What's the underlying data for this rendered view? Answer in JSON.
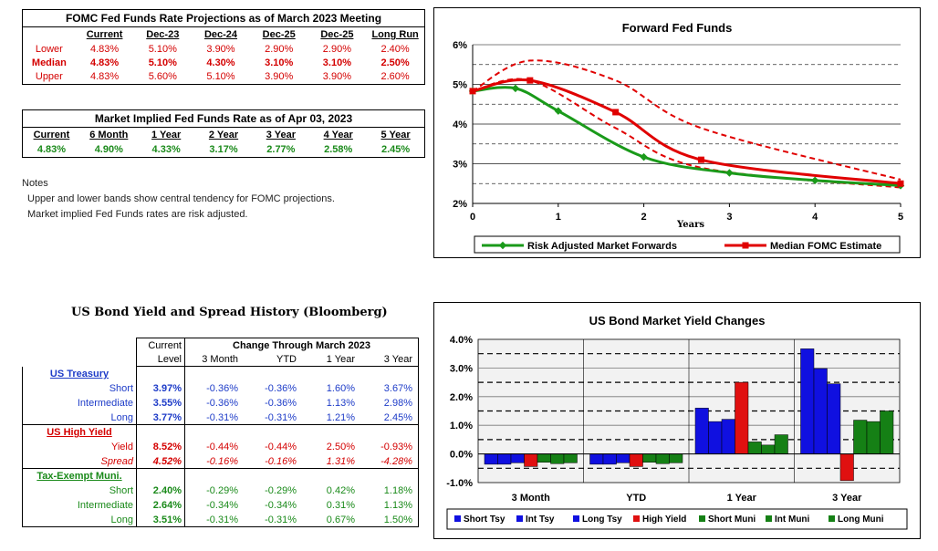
{
  "fomc_table": {
    "title": "FOMC Fed Funds Rate Projections as of March 2023 Meeting",
    "columns": [
      "Current",
      "Dec-23",
      "Dec-24",
      "Dec-25",
      "Dec-25",
      "Long Run"
    ],
    "rows": [
      {
        "label": "Lower",
        "values": [
          "4.83%",
          "5.10%",
          "3.90%",
          "2.90%",
          "2.90%",
          "2.40%"
        ]
      },
      {
        "label": "Median",
        "values": [
          "4.83%",
          "5.10%",
          "4.30%",
          "3.10%",
          "3.10%",
          "2.50%"
        ]
      },
      {
        "label": "Upper",
        "values": [
          "4.83%",
          "5.60%",
          "5.10%",
          "3.90%",
          "3.90%",
          "2.60%"
        ]
      }
    ]
  },
  "implied_table": {
    "title": "Market Implied Fed Funds Rate as of Apr 03, 2023",
    "columns": [
      "Current",
      "6 Month",
      "1 Year",
      "2 Year",
      "3 Year",
      "4 Year",
      "5 Year"
    ],
    "values": [
      "4.83%",
      "4.90%",
      "4.33%",
      "3.17%",
      "2.77%",
      "2.58%",
      "2.45%"
    ]
  },
  "notes": {
    "heading": "Notes",
    "line1": "Upper and lower bands show central tendency for FOMC projections.",
    "line2": "Market implied Fed Funds rates are risk adjusted."
  },
  "bond_table": {
    "title": "US Bond Yield and Spread History (Bloomberg)",
    "header": {
      "current": "Current",
      "level": "Level",
      "change_title": "Change Through March 2023",
      "cols": [
        "3 Month",
        "YTD",
        "1 Year",
        "3 Year"
      ]
    },
    "sections": [
      {
        "name": "US Treasury",
        "rows": [
          {
            "label": "Short",
            "level": "3.97%",
            "values": [
              "-0.36%",
              "-0.36%",
              "1.60%",
              "3.67%"
            ]
          },
          {
            "label": "Intermediate",
            "level": "3.55%",
            "values": [
              "-0.36%",
              "-0.36%",
              "1.13%",
              "2.98%"
            ]
          },
          {
            "label": "Long",
            "level": "3.77%",
            "values": [
              "-0.31%",
              "-0.31%",
              "1.21%",
              "2.45%"
            ]
          }
        ]
      },
      {
        "name": "US High Yield",
        "rows": [
          {
            "label": "Yield",
            "level": "8.52%",
            "values": [
              "-0.44%",
              "-0.44%",
              "2.50%",
              "-0.93%"
            ]
          },
          {
            "label": "Spread",
            "level": "4.52%",
            "values": [
              "-0.16%",
              "-0.16%",
              "1.31%",
              "-4.28%"
            ]
          }
        ]
      },
      {
        "name": "Tax-Exempt Muni.",
        "rows": [
          {
            "label": "Short",
            "level": "2.40%",
            "values": [
              "-0.29%",
              "-0.29%",
              "0.42%",
              "1.18%"
            ]
          },
          {
            "label": "Intermediate",
            "level": "2.64%",
            "values": [
              "-0.34%",
              "-0.34%",
              "0.31%",
              "1.13%"
            ]
          },
          {
            "label": "Long",
            "level": "3.51%",
            "values": [
              "-0.31%",
              "-0.31%",
              "0.67%",
              "1.50%"
            ]
          }
        ]
      }
    ]
  },
  "chart_data": [
    {
      "type": "line",
      "title": "Forward Fed Funds",
      "xlabel": "Years",
      "ylabel": "",
      "xlim": [
        0,
        5
      ],
      "ylim": [
        2,
        6
      ],
      "x_ticks": [
        0,
        1,
        2,
        3,
        4,
        5
      ],
      "y_ticks": [
        2,
        3,
        4,
        5,
        6
      ],
      "y_tick_labels": [
        "2%",
        "3%",
        "4%",
        "5%",
        "6%"
      ],
      "grid": "dashed horizontal at half-percent levels",
      "legend": "bottom",
      "series": [
        {
          "name": "Risk Adjusted Market Forwards",
          "color": "#1a9a1a",
          "style": "solid-markers",
          "x": [
            0,
            0.5,
            1,
            2,
            3,
            4,
            5
          ],
          "y": [
            4.83,
            4.9,
            4.33,
            3.17,
            2.77,
            2.58,
            2.45
          ]
        },
        {
          "name": "Median FOMC Estimate",
          "color": "#e00000",
          "style": "solid-markers",
          "x": [
            0,
            0.67,
            1.67,
            2.67,
            5
          ],
          "y": [
            4.83,
            5.1,
            4.3,
            3.1,
            2.5
          ]
        },
        {
          "color": "#e00000",
          "style": "dashed",
          "x": [
            0,
            0.67,
            1.67,
            2.67,
            5
          ],
          "y": [
            4.83,
            5.6,
            5.1,
            3.9,
            2.6
          ]
        },
        {
          "color": "#e00000",
          "style": "dashed",
          "x": [
            0,
            0.67,
            1.67,
            2.67,
            5
          ],
          "y": [
            4.83,
            5.1,
            3.9,
            2.9,
            2.4
          ]
        }
      ]
    },
    {
      "type": "bar",
      "title": "US Bond Market Yield Changes",
      "categories": [
        "3 Month",
        "YTD",
        "1 Year",
        "3 Year"
      ],
      "ylim": [
        -1,
        4
      ],
      "y_ticks": [
        -1,
        0,
        1,
        2,
        3,
        4
      ],
      "y_tick_labels": [
        "-1.0%",
        "0.0%",
        "1.0%",
        "2.0%",
        "3.0%",
        "4.0%"
      ],
      "grid": "dashed horizontal at half-percent levels",
      "legend": "bottom",
      "series": [
        {
          "name": "Short Tsy",
          "color": "#1010e0",
          "values": [
            -0.36,
            -0.36,
            1.6,
            3.67
          ]
        },
        {
          "name": "Int Tsy",
          "color": "#1010e0",
          "values": [
            -0.36,
            -0.36,
            1.13,
            2.98
          ]
        },
        {
          "name": "Long Tsy",
          "color": "#1010e0",
          "values": [
            -0.31,
            -0.31,
            1.21,
            2.45
          ]
        },
        {
          "name": "High Yield",
          "color": "#e01010",
          "values": [
            -0.44,
            -0.44,
            2.5,
            -0.93
          ]
        },
        {
          "name": "Short Muni",
          "color": "#158015",
          "values": [
            -0.29,
            -0.29,
            0.42,
            1.18
          ]
        },
        {
          "name": "Int Muni",
          "color": "#158015",
          "values": [
            -0.34,
            -0.34,
            0.31,
            1.13
          ]
        },
        {
          "name": "Long Muni",
          "color": "#158015",
          "values": [
            -0.31,
            -0.31,
            0.67,
            1.5
          ]
        }
      ]
    }
  ]
}
